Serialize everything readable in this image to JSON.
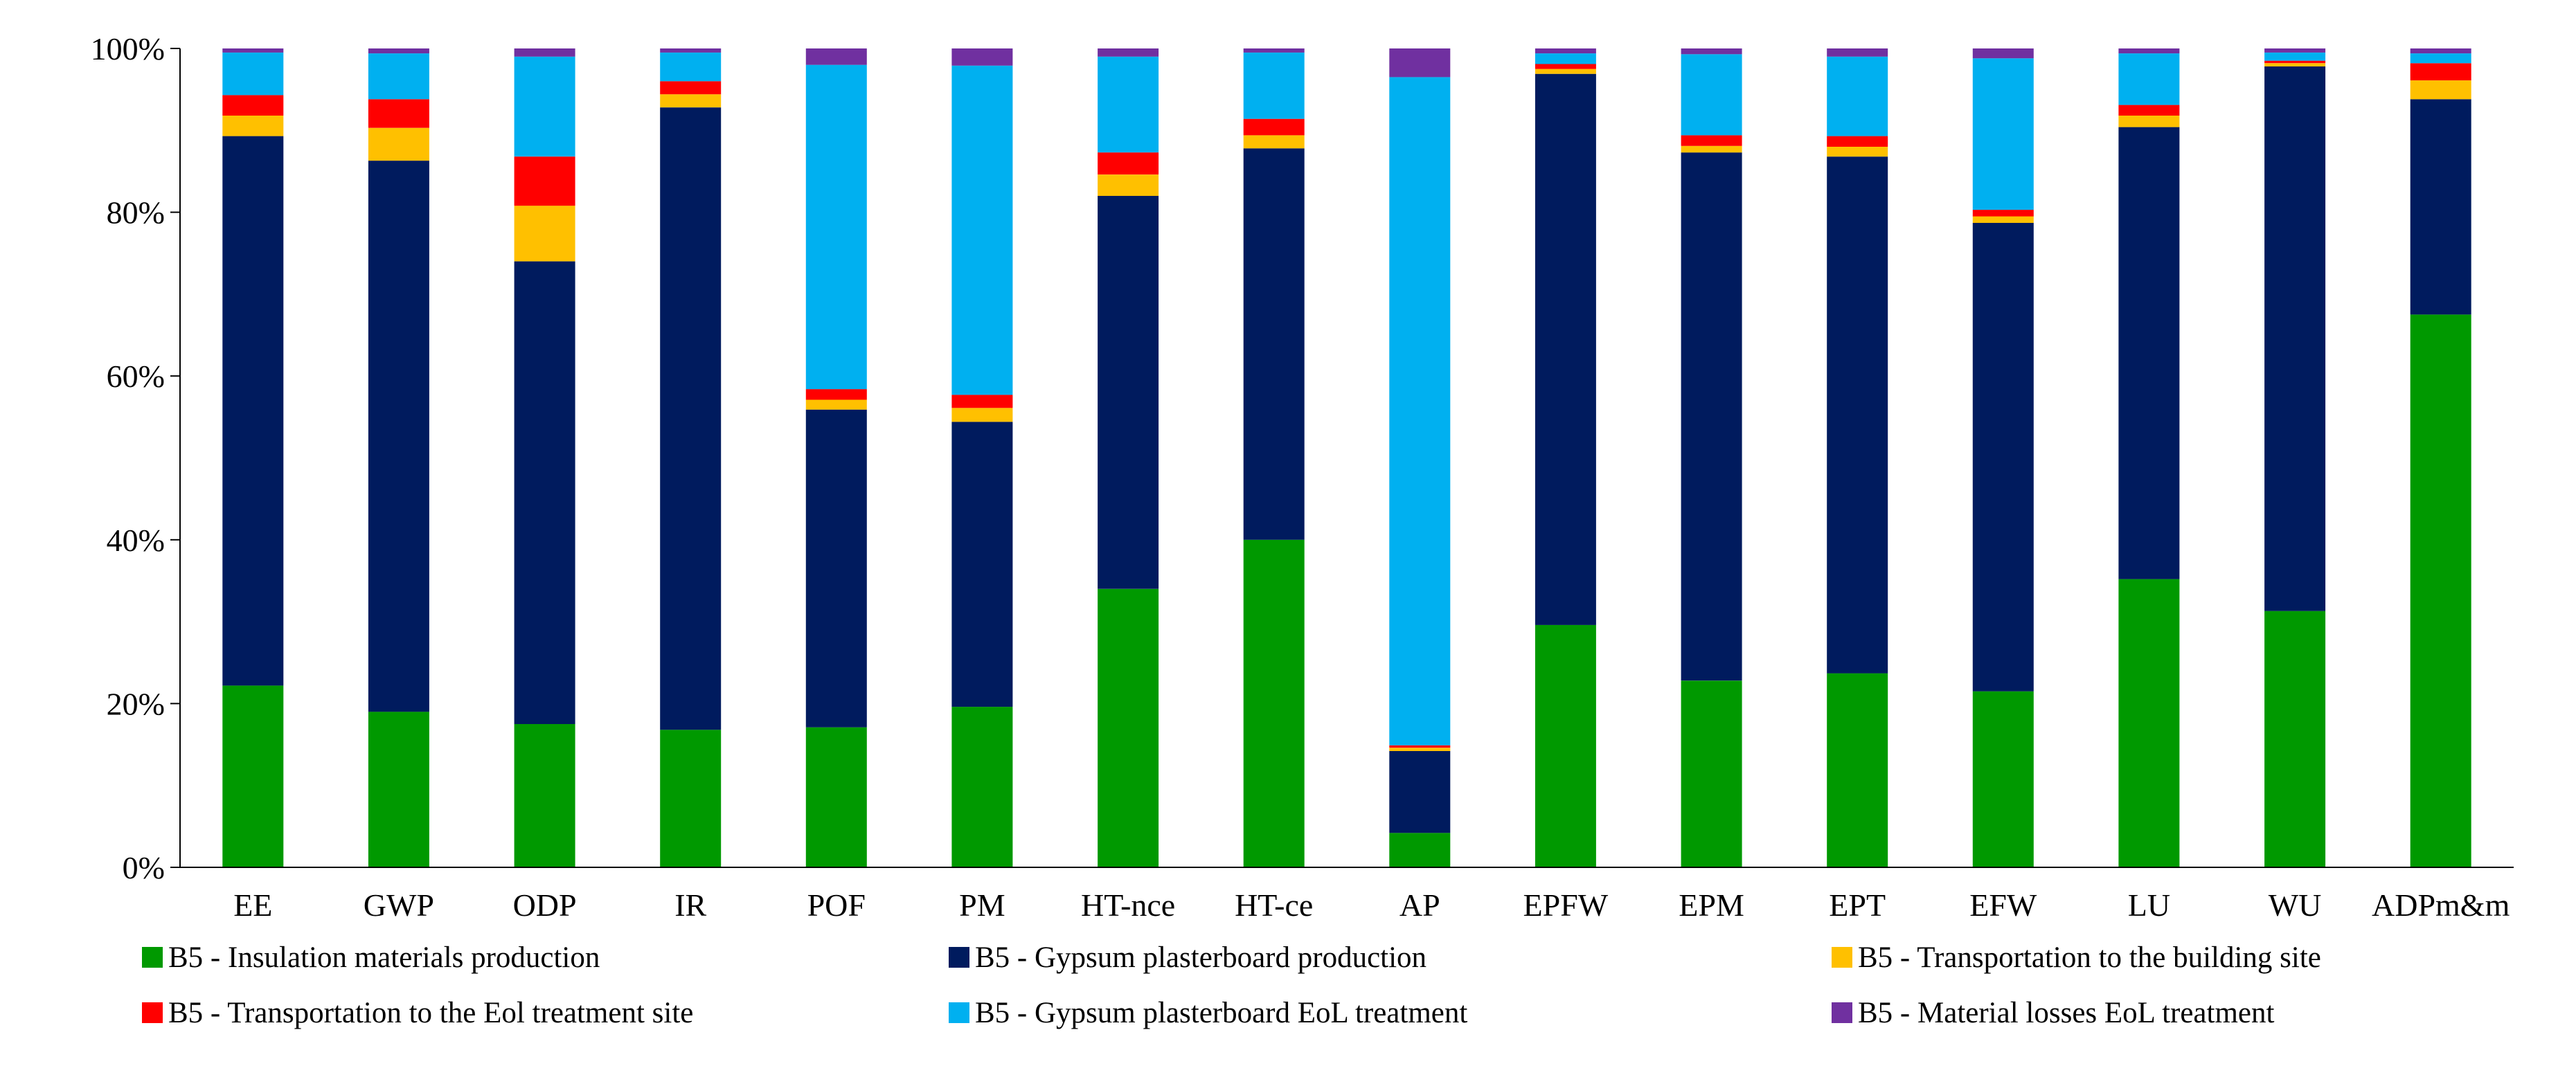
{
  "chart_data": {
    "type": "bar",
    "stacked": true,
    "percent_stacked": true,
    "title": "",
    "xlabel": "",
    "ylabel": "",
    "ylim": [
      0,
      100
    ],
    "y_tick_labels": [
      "0%",
      "20%",
      "40%",
      "60%",
      "80%",
      "100%"
    ],
    "y_tick_values": [
      0,
      20,
      40,
      60,
      80,
      100
    ],
    "grid": false,
    "legend_position": "bottom",
    "categories": [
      "EE",
      "GWP",
      "ODP",
      "IR",
      "POF",
      "PM",
      "HT-nce",
      "HT-ce",
      "AP",
      "EPFW",
      "EPM",
      "EPT",
      "EFW",
      "LU",
      "WU",
      "ADPm&m"
    ],
    "series": [
      {
        "name": "B5 - Insulation materials production",
        "color": "#009900",
        "values": [
          22.2,
          19.0,
          17.5,
          16.8,
          17.1,
          19.6,
          34.0,
          40.0,
          4.2,
          29.6,
          22.8,
          23.7,
          21.5,
          35.2,
          31.3,
          67.5
        ]
      },
      {
        "name": "B5 - Gypsum plasterboard production",
        "color": "#001b5e",
        "values": [
          67.1,
          67.3,
          56.5,
          76.0,
          38.8,
          34.8,
          48.0,
          47.8,
          10.0,
          67.3,
          64.5,
          63.1,
          57.2,
          55.2,
          66.5,
          26.3
        ]
      },
      {
        "name": "B5 - Transportation to the building site",
        "color": "#ffc000",
        "values": [
          2.5,
          4.0,
          6.8,
          1.6,
          1.2,
          1.7,
          2.6,
          1.6,
          0.4,
          0.6,
          0.8,
          1.2,
          0.8,
          1.4,
          0.4,
          2.3
        ]
      },
      {
        "name": "B5 - Transportation to the Eol treatment site",
        "color": "#ff0000",
        "values": [
          2.5,
          3.5,
          6.0,
          1.6,
          1.3,
          1.6,
          2.7,
          2.0,
          0.3,
          0.6,
          1.3,
          1.3,
          0.8,
          1.3,
          0.3,
          2.1
        ]
      },
      {
        "name": "B5 - Gypsum plasterboard EoL treatment",
        "color": "#00b0f0",
        "values": [
          5.2,
          5.6,
          12.2,
          3.5,
          39.6,
          40.2,
          11.7,
          8.1,
          81.6,
          1.3,
          9.9,
          9.7,
          18.5,
          6.3,
          1.0,
          1.2
        ]
      },
      {
        "name": "B5 - Material losses EoL treatment",
        "color": "#7030a0",
        "values": [
          0.5,
          0.6,
          1.0,
          0.5,
          2.0,
          2.1,
          1.0,
          0.5,
          3.5,
          0.6,
          0.7,
          1.0,
          1.2,
          0.6,
          0.5,
          0.6
        ]
      }
    ]
  }
}
